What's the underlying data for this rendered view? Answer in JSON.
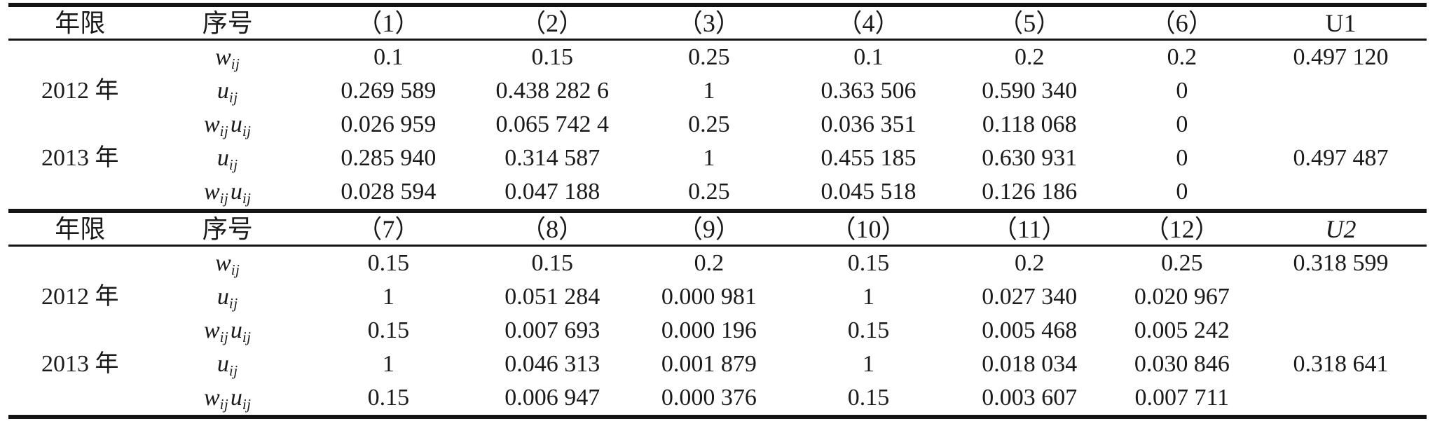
{
  "colors": {
    "text": "#1a1a1a",
    "rule": "#141414",
    "background": "#ffffff"
  },
  "math_labels": {
    "w": [
      {
        "base": "w",
        "sub": "ij"
      }
    ],
    "u": [
      {
        "base": "u",
        "sub": "ij"
      }
    ],
    "wu": [
      {
        "base": "w",
        "sub": "ij"
      },
      {
        "base": "u",
        "sub": "ij"
      }
    ]
  },
  "table": {
    "sections": [
      {
        "columns": [
          "年限",
          "序号",
          "（1）",
          "（2）",
          "（3）",
          "（4）",
          "（5）",
          "（6）"
        ],
        "u_header": {
          "text": "U1",
          "italic": false
        },
        "rows": [
          {
            "year": "",
            "label": "w",
            "values": [
              "0.1",
              "0.15",
              "0.25",
              "0.1",
              "0.2",
              "0.2"
            ],
            "u": "0.497 120"
          },
          {
            "year": "2012 年",
            "label": "u",
            "values": [
              "0.269 589",
              "0.438 282 6",
              "1",
              "0.363 506",
              "0.590 340",
              "0"
            ],
            "u": ""
          },
          {
            "year": "",
            "label": "wu",
            "values": [
              "0.026 959",
              "0.065 742 4",
              "0.25",
              "0.036 351",
              "0.118 068",
              "0"
            ],
            "u": ""
          },
          {
            "year": "2013 年",
            "label": "u",
            "values": [
              "0.285 940",
              "0.314 587",
              "1",
              "0.455 185",
              "0.630 931",
              "0"
            ],
            "u": "0.497 487"
          },
          {
            "year": "",
            "label": "wu",
            "values": [
              "0.028 594",
              "0.047 188",
              "0.25",
              "0.045 518",
              "0.126 186",
              "0"
            ],
            "u": ""
          }
        ]
      },
      {
        "columns": [
          "年限",
          "序号",
          "（7）",
          "（8）",
          "（9）",
          "（10）",
          "（11）",
          "（12）"
        ],
        "u_header": {
          "text": "U2",
          "italic": true
        },
        "rows": [
          {
            "year": "",
            "label": "w",
            "values": [
              "0.15",
              "0.15",
              "0.2",
              "0.15",
              "0.2",
              "0.25"
            ],
            "u": "0.318 599"
          },
          {
            "year": "2012 年",
            "label": "u",
            "values": [
              "1",
              "0.051 284",
              "0.000 981",
              "1",
              "0.027 340",
              "0.020 967"
            ],
            "u": ""
          },
          {
            "year": "",
            "label": "wu",
            "values": [
              "0.15",
              "0.007 693",
              "0.000 196",
              "0.15",
              "0.005 468",
              "0.005 242"
            ],
            "u": ""
          },
          {
            "year": "2013 年",
            "label": "u",
            "values": [
              "1",
              "0.046 313",
              "0.001 879",
              "1",
              "0.018 034",
              "0.030 846"
            ],
            "u": "0.318 641"
          },
          {
            "year": "",
            "label": "wu",
            "values": [
              "0.15",
              "0.006 947",
              "0.000 376",
              "0.15",
              "0.003 607",
              "0.007 711"
            ],
            "u": ""
          }
        ]
      }
    ]
  }
}
